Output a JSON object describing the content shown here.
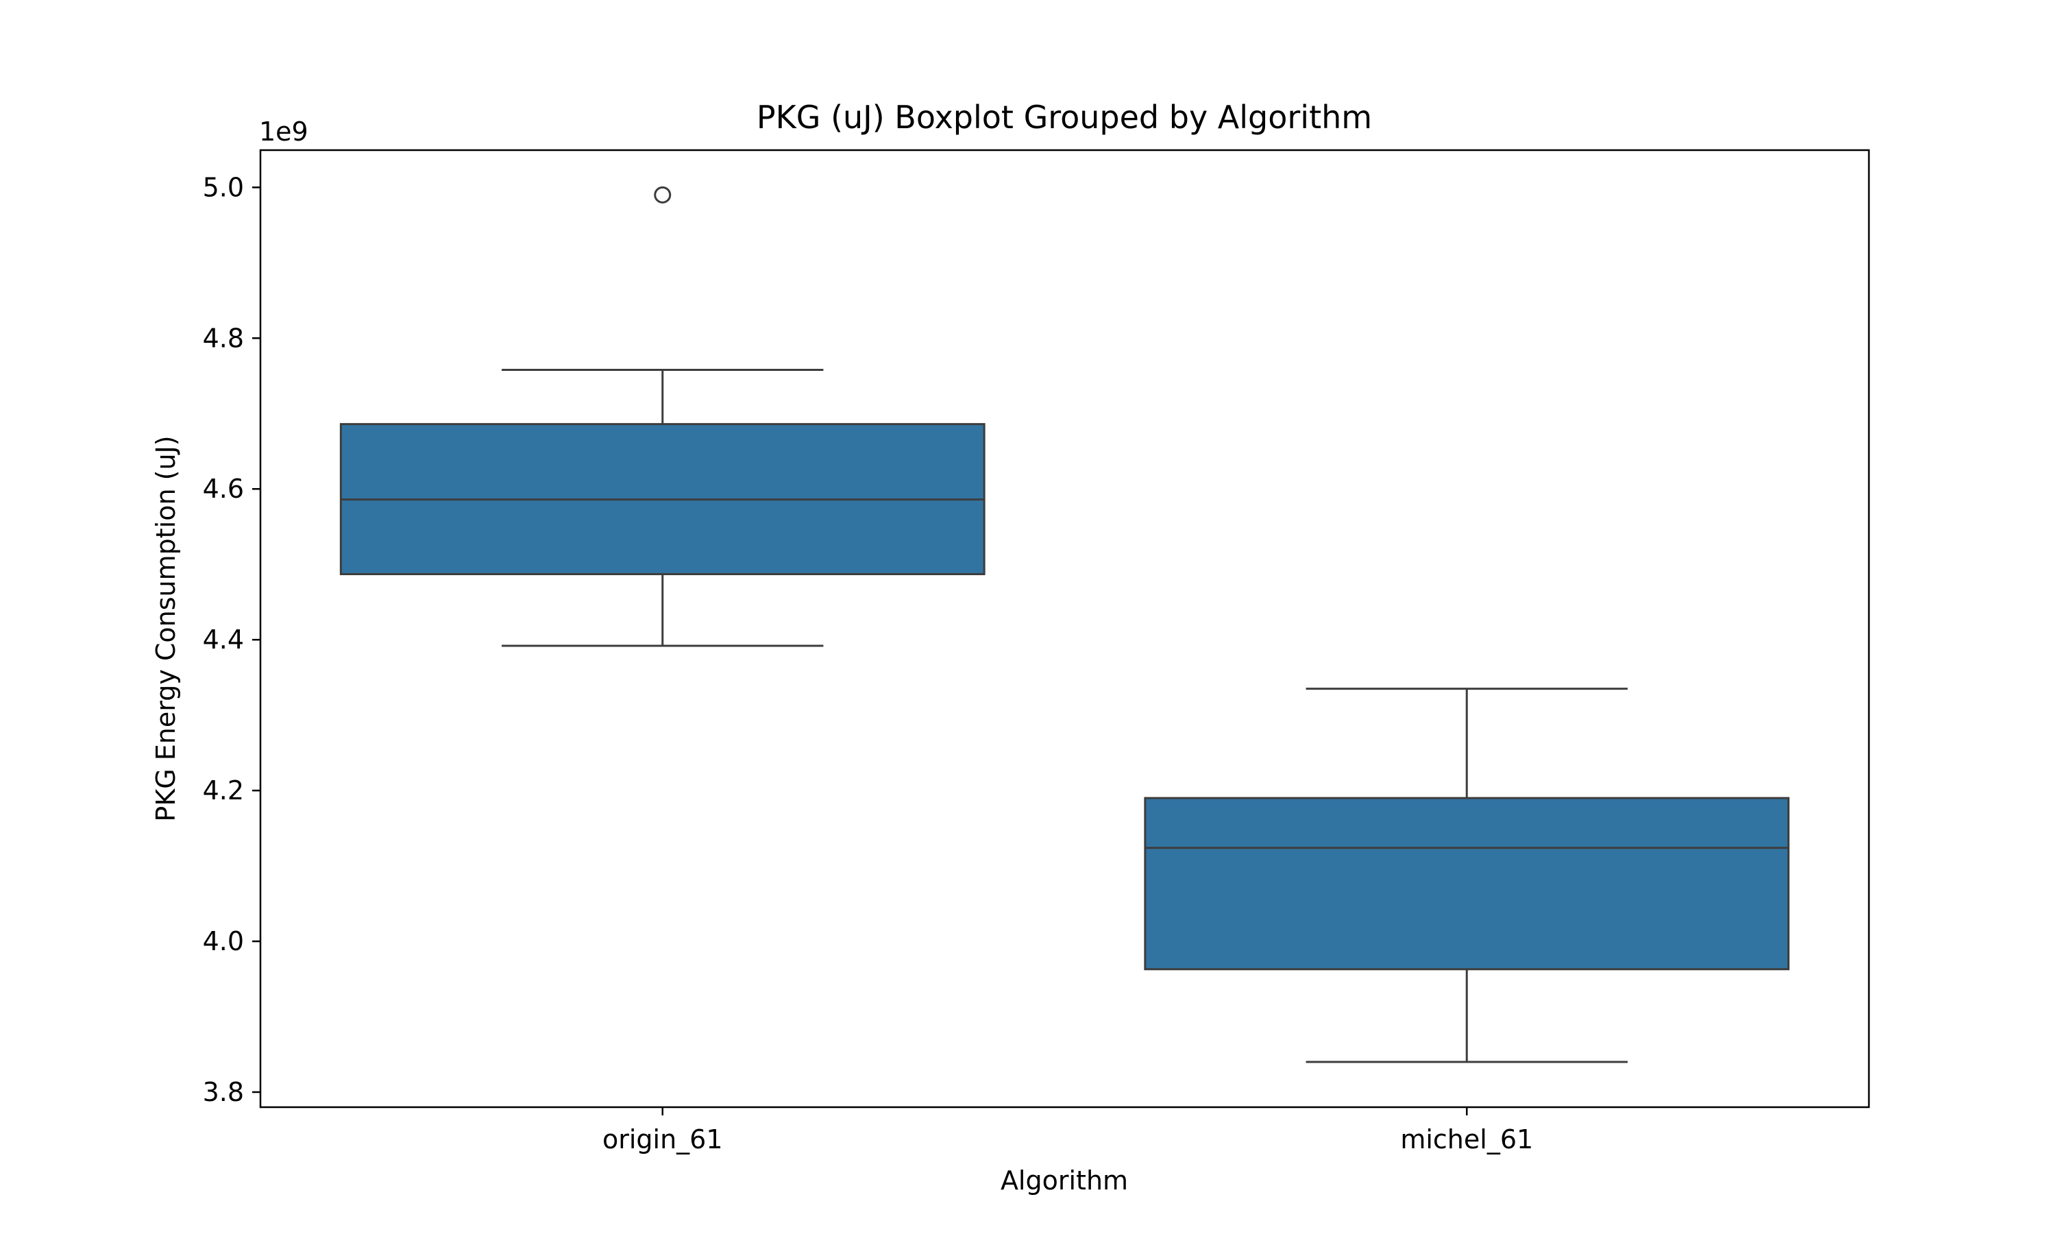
{
  "chart_data": {
    "type": "box",
    "title": "PKG (uJ) Boxplot Grouped by Algorithm",
    "xlabel": "Algorithm",
    "ylabel": "PKG Energy Consumption (uJ)",
    "y_offset_label": "1e9",
    "y_scale": 1000000000,
    "ylim": [
      3.78,
      5.0494
    ],
    "yticks": [
      3.8,
      4.0,
      4.2,
      4.4,
      4.6,
      4.8,
      5.0
    ],
    "ytick_labels": [
      "3.8",
      "4.0",
      "4.2",
      "4.4",
      "4.6",
      "4.8",
      "5.0"
    ],
    "categories": [
      "origin_61",
      "michel_61"
    ],
    "boxes": [
      {
        "name": "origin_61",
        "whisker_low": 4.392,
        "q1": 4.487,
        "median": 4.586,
        "q3": 4.686,
        "whisker_high": 4.758,
        "outliers": [
          4.99
        ]
      },
      {
        "name": "michel_61",
        "whisker_low": 3.84,
        "q1": 3.963,
        "median": 4.124,
        "q3": 4.19,
        "whisker_high": 4.335,
        "outliers": []
      }
    ],
    "box_color": "#3274a1",
    "line_color": "#3d3d3d",
    "grid": false,
    "legend": "none"
  }
}
